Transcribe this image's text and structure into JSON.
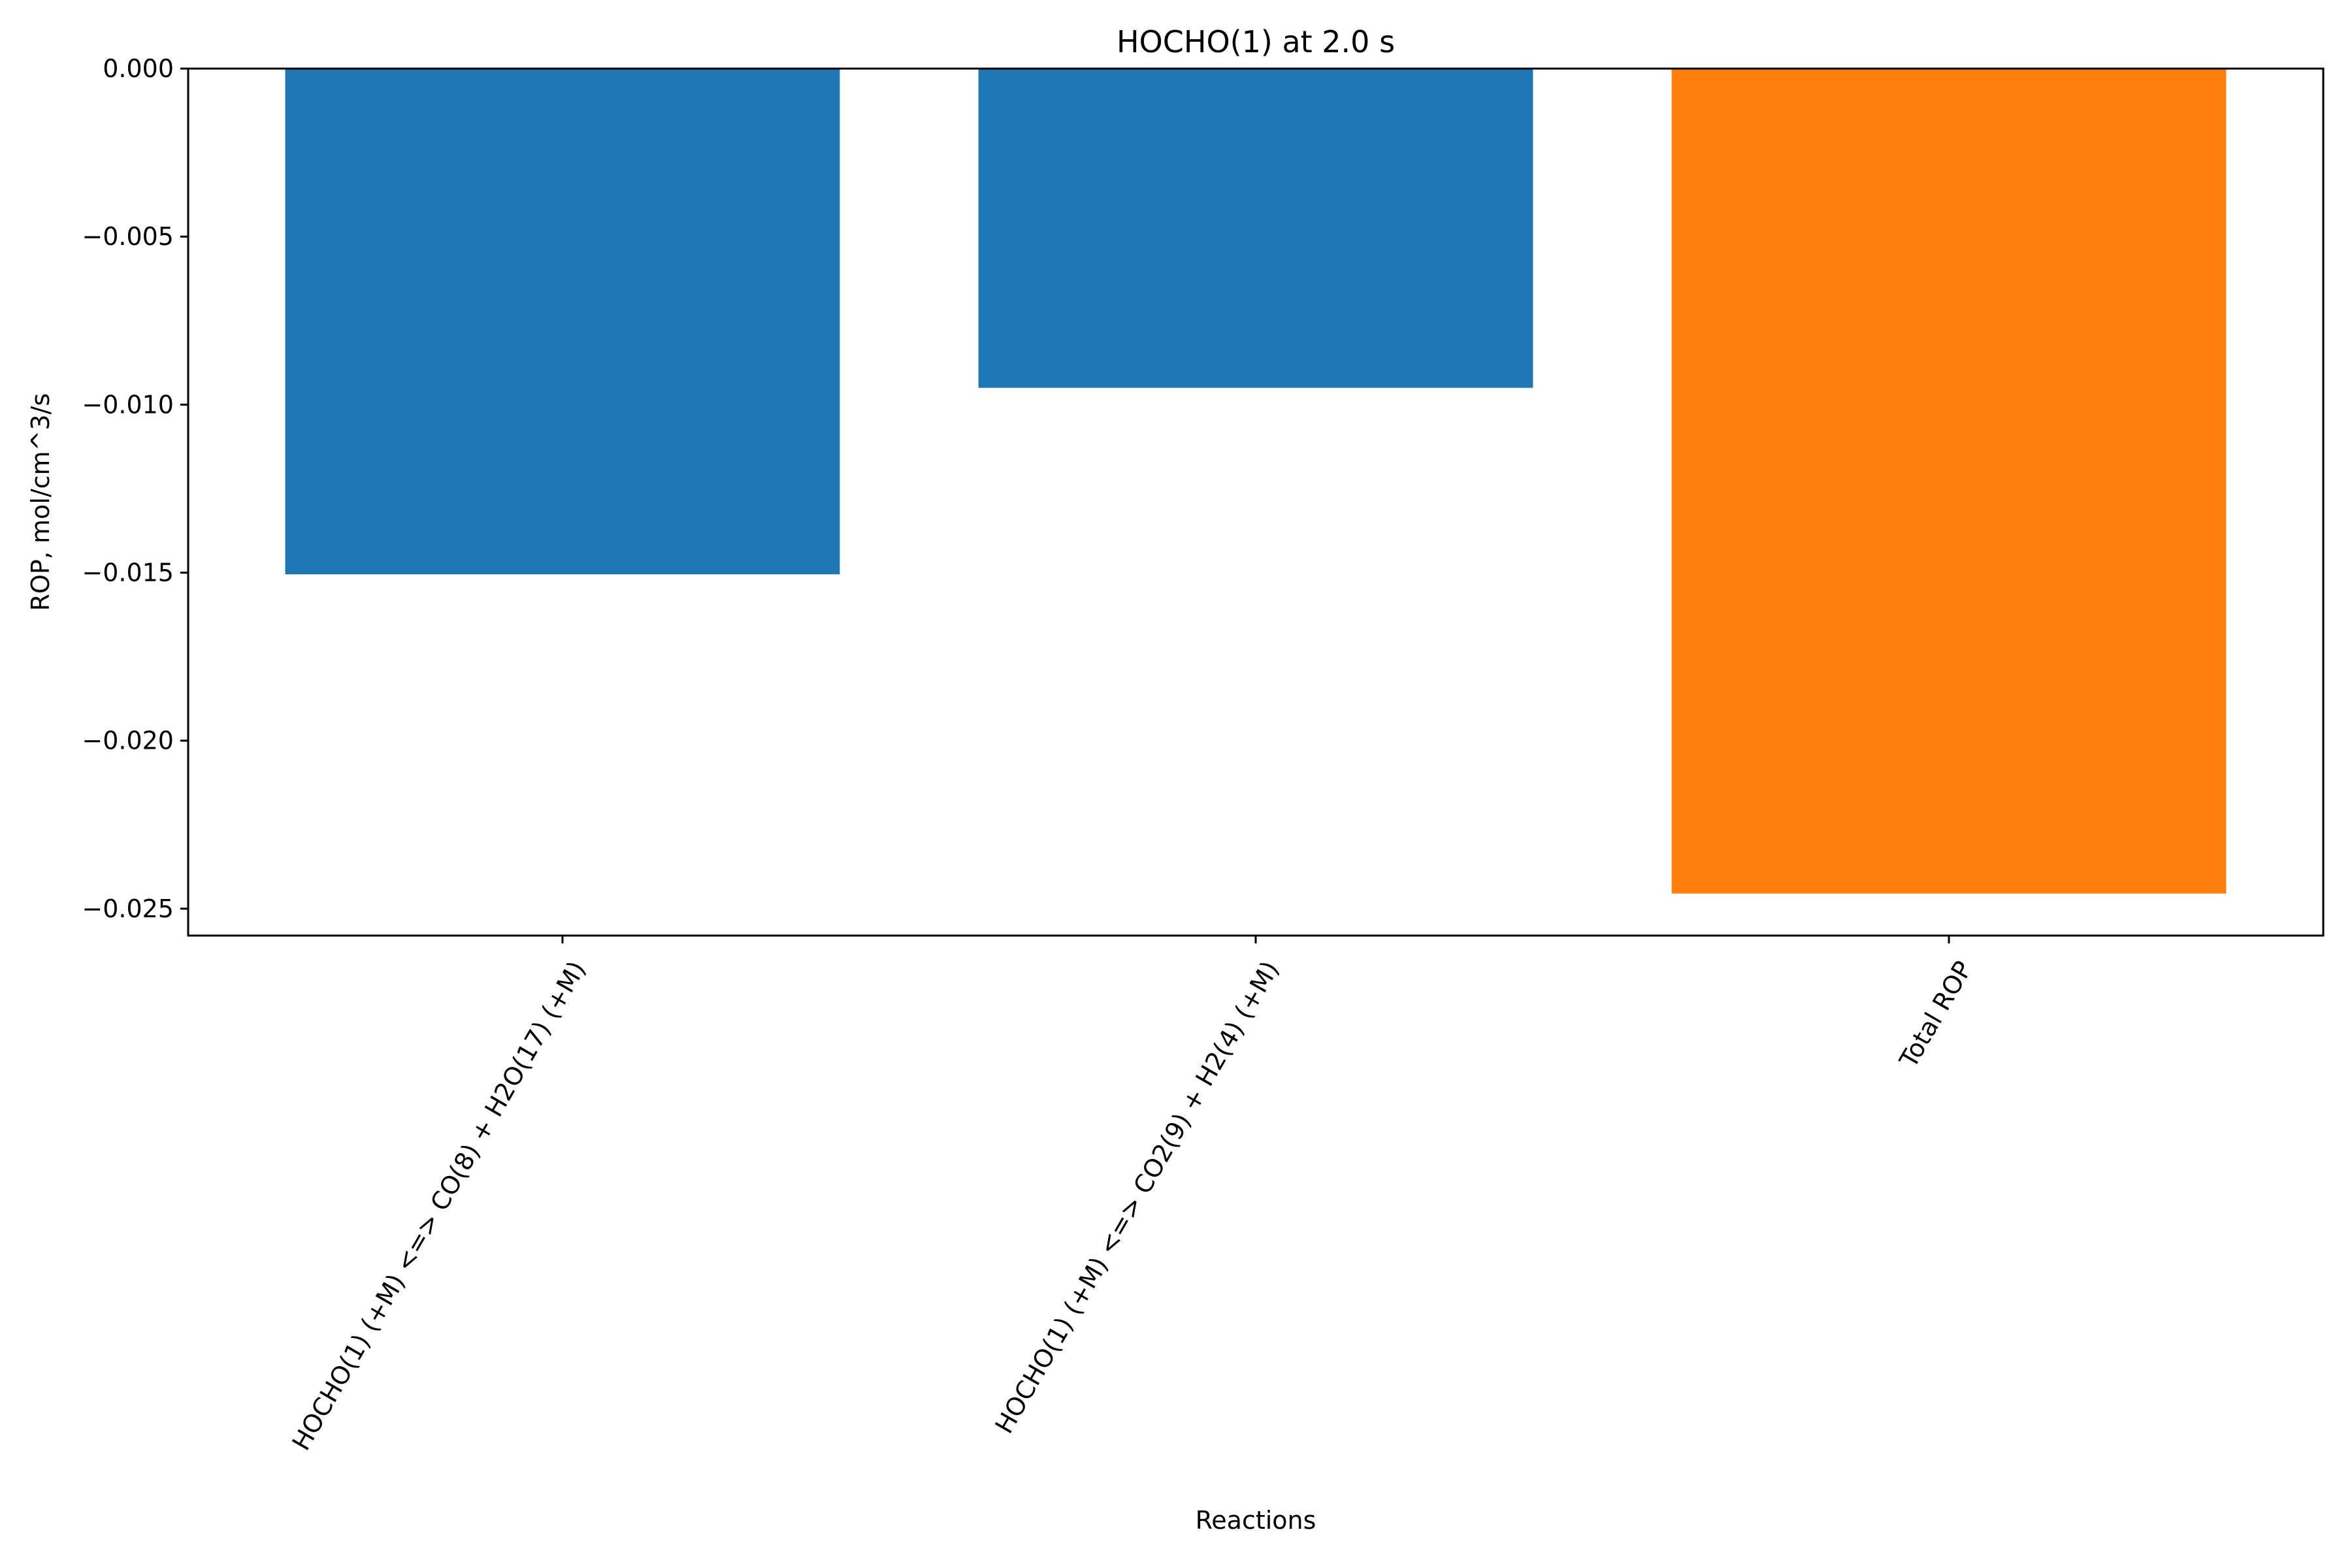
{
  "chart_data": {
    "type": "bar",
    "title": "HOCHO(1) at 2.0 s",
    "xlabel": "Reactions",
    "ylabel": "ROP, mol/cm^3/s",
    "categories": [
      "HOCHO(1) (+M) <=> CO(8) + H2O(17) (+M)",
      "HOCHO(1) (+M) <=> CO2(9) + H2(4) (+M)",
      "Total ROP"
    ],
    "values": [
      -0.01505,
      -0.0095,
      -0.02455
    ],
    "bar_colors": [
      "#1f77b4",
      "#1f77b4",
      "#ff7f0e"
    ],
    "ylim": [
      -0.0258,
      0.0
    ],
    "yticks": [
      0.0,
      -0.005,
      -0.01,
      -0.015,
      -0.02,
      -0.025
    ],
    "ytick_labels": [
      "0.000",
      "−0.005",
      "−0.010",
      "−0.015",
      "−0.020",
      "−0.025"
    ],
    "xtick_rotation_deg": 60,
    "grid": false,
    "legend": "none"
  }
}
